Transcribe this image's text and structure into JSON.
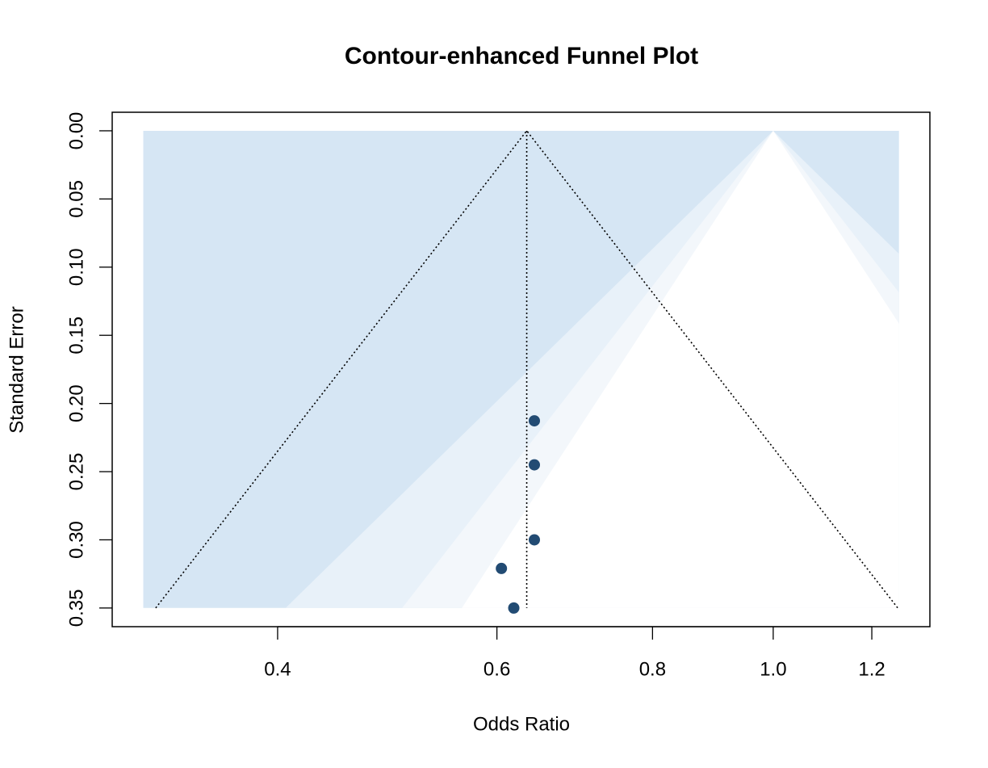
{
  "chart_data": {
    "type": "funnel",
    "title": "Contour-enhanced Funnel Plot",
    "x_label": "Odds Ratio",
    "y_label": "Standard Error",
    "x_log": true,
    "y_reversed": true,
    "xlim": [
      0.2946,
      1.336
    ],
    "ylim": [
      -0.0136,
      0.3637
    ],
    "xticks": [
      0.4,
      0.6,
      0.8,
      {
        "value": 1.0,
        "label": "1.0"
      },
      1.2
    ],
    "yticks": [
      {
        "value": 0,
        "label": "0.00"
      },
      {
        "value": 0.05,
        "label": "0.05"
      },
      {
        "value": 0.1,
        "label": "0.10"
      },
      {
        "value": 0.15,
        "label": "0.15"
      },
      {
        "value": 0.2,
        "label": "0.20"
      },
      {
        "value": 0.25,
        "label": "0.25"
      },
      {
        "value": 0.3,
        "label": "0.30"
      },
      {
        "value": 0.35,
        "label": "0.35"
      }
    ],
    "contour_center": 1.0,
    "contour_xlim": [
      0.312,
      1.262
    ],
    "contours": [
      {
        "level": 0.99,
        "color": "#d6e6f4"
      },
      {
        "level": 0.95,
        "color": "#e8f1f9"
      },
      {
        "level": 0.9,
        "color": "#f3f7fb"
      }
    ],
    "inner_color": "#ffffff",
    "estimate": 0.634,
    "ci_level": 0.95,
    "point_color": "#224b73",
    "x": [
      0.643,
      0.643,
      0.643,
      0.605,
      0.619
    ],
    "values": [
      0.2127,
      0.245,
      0.3,
      0.321,
      0.35
    ]
  }
}
